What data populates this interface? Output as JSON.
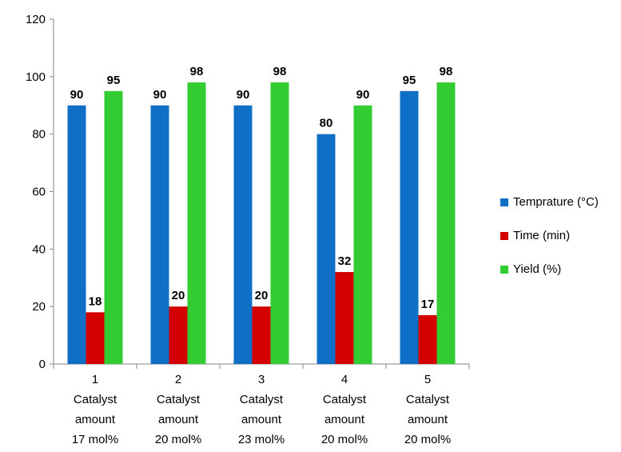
{
  "chart_data": {
    "type": "bar",
    "categories": [
      [
        "1",
        "Catalyst",
        "amount",
        "17 mol%"
      ],
      [
        "2",
        "Catalyst",
        "amount",
        "20 mol%"
      ],
      [
        "3",
        "Catalyst",
        "amount",
        "23 mol%"
      ],
      [
        "4",
        "Catalyst",
        "amount",
        "20 mol%"
      ],
      [
        "5",
        "Catalyst",
        "amount",
        "20 mol%"
      ]
    ],
    "series": [
      {
        "name": "Temprature (°C)",
        "color": "#0F6FC6",
        "values": [
          90,
          90,
          90,
          80,
          95
        ]
      },
      {
        "name": "Time (min)",
        "color": "#D40000",
        "values": [
          18,
          20,
          20,
          32,
          17
        ]
      },
      {
        "name": "Yield (%)",
        "color": "#33CC33",
        "values": [
          95,
          98,
          98,
          90,
          98
        ]
      }
    ],
    "ylim": [
      0,
      120
    ],
    "yticks": [
      0,
      20,
      40,
      60,
      80,
      100,
      120
    ],
    "grid": false,
    "legend_position": "right",
    "data_labels": true
  }
}
